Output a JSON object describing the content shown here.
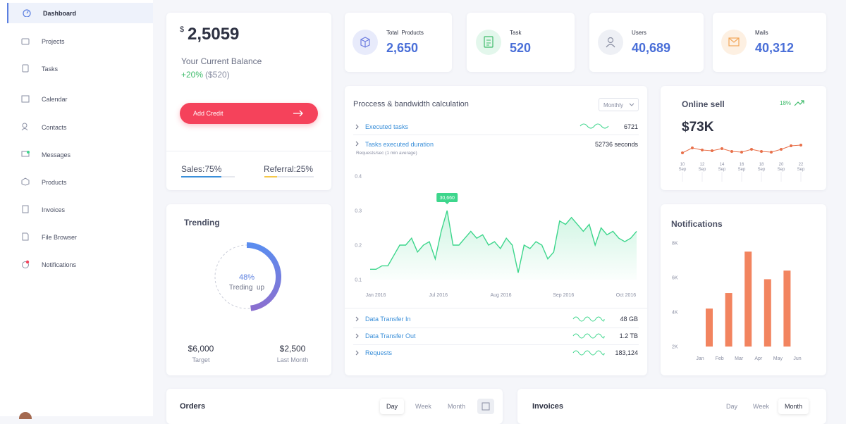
{
  "sidebar": {
    "items": [
      "Dashboard",
      "Projects",
      "Tasks",
      "Calendar",
      "Contacts",
      "Messages",
      "Products",
      "Invoices",
      "File Browser",
      "Notifications"
    ]
  },
  "balance": {
    "currency": "$",
    "amount": "2,5059",
    "label": "Your Current Balance",
    "change": "+20%",
    "change_amount": "($520)",
    "button": "Add Credit",
    "sales": {
      "value": 75,
      "label": "Sales:75%"
    },
    "referral": {
      "value": 25,
      "label": "Referral:25%"
    }
  },
  "stats": [
    {
      "label": "Total  Products",
      "value": "2,650"
    },
    {
      "label": "Task",
      "value": "520"
    },
    {
      "label": "Users",
      "value": "40,689"
    },
    {
      "label": "Mails",
      "value": "40,312"
    }
  ],
  "process": {
    "title": "Proccess & bandwidth calculation",
    "period": "Monthly",
    "rows": [
      {
        "label": "Executed tasks",
        "value": "6721"
      },
      {
        "label": "Tasks executed duration",
        "value": "52736 seconds"
      }
    ],
    "chart_label": "Requests/sec (1 min average)",
    "chart": {
      "type": "area",
      "x_labels": [
        "Jan 2016",
        "Jul 2016",
        "Aug 2016",
        "Sep 2016",
        "Oct 2016"
      ],
      "values": [
        0.13,
        0.13,
        0.14,
        0.14,
        0.17,
        0.2,
        0.2,
        0.22,
        0.18,
        0.2,
        0.21,
        0.16,
        0.24,
        0.3,
        0.2,
        0.2,
        0.22,
        0.24,
        0.22,
        0.23,
        0.2,
        0.21,
        0.19,
        0.22,
        0.2,
        0.12,
        0.2,
        0.19,
        0.21,
        0.2,
        0.16,
        0.18,
        0.27,
        0.26,
        0.28,
        0.26,
        0.24,
        0.26,
        0.2,
        0.25,
        0.23,
        0.24,
        0.22,
        0.21,
        0.22,
        0.24
      ],
      "ylim": [
        0.1,
        0.4
      ],
      "yticks": [
        0.1,
        0.2,
        0.3,
        0.4
      ],
      "annotation": "30,660",
      "color": "#3dd68c"
    },
    "footer_rows": [
      {
        "label": "Data Transfer In",
        "value": "48 GB"
      },
      {
        "label": "Data Transfer Out",
        "value": "1.2 TB"
      },
      {
        "label": "Requests",
        "value": "183,124"
      }
    ]
  },
  "online_sell": {
    "title": "Online sell",
    "change": "18%",
    "value": "$73K",
    "chart": {
      "type": "line",
      "values": [
        20,
        48,
        36,
        32,
        44,
        28,
        24,
        40,
        28,
        24,
        40,
        60,
        64
      ],
      "x_labels": [
        {
          "day": "10",
          "month": "Sep"
        },
        {
          "day": "12",
          "month": "Sep"
        },
        {
          "day": "14",
          "month": "Sep"
        },
        {
          "day": "16",
          "month": "Sep"
        },
        {
          "day": "18",
          "month": "Sep"
        },
        {
          "day": "20",
          "month": "Sep"
        },
        {
          "day": "22",
          "month": "Sep"
        }
      ],
      "color": "#e8704a"
    }
  },
  "trending": {
    "title": "Trending",
    "percent": {
      "value": 48,
      "label": "48%"
    },
    "caption": "Treding  up",
    "target": {
      "value": "$6,000",
      "label": "Target"
    },
    "last_month": {
      "value": "$2,500",
      "label": "Last Month"
    }
  },
  "notifications": {
    "title": "Notifications",
    "chart": {
      "type": "bar",
      "categories": [
        "Jan",
        "Feb",
        "Mar",
        "Apr",
        "May",
        "Jun"
      ],
      "values": [
        4200,
        5100,
        7500,
        5900,
        6400,
        null
      ],
      "ylim": [
        2000,
        8000
      ],
      "yticks": [
        {
          "value": 2000,
          "label": "2K"
        },
        {
          "value": 4000,
          "label": "4K"
        },
        {
          "value": 6000,
          "label": "6K"
        },
        {
          "value": 8000,
          "label": "8K"
        }
      ],
      "color": "#f2845f"
    }
  },
  "orders": {
    "title": "Orders",
    "tabs": [
      "Day",
      "Week",
      "Month"
    ]
  },
  "invoices": {
    "title": "Invoices",
    "tabs": [
      "Day",
      "Week",
      "Month"
    ]
  }
}
